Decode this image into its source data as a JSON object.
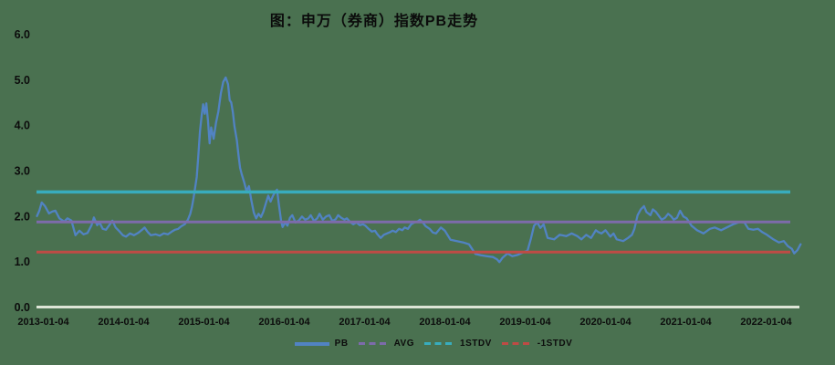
{
  "chart_data": {
    "type": "line",
    "title": "图：申万（券商）指数PB走势",
    "xlabel": "",
    "ylabel": "",
    "ylim": [
      0,
      6
    ],
    "grid": false,
    "legend_position": "bottom",
    "y_tick_labels": [
      "0.0",
      "1.0",
      "2.0",
      "3.0",
      "4.0",
      "5.0",
      "6.0"
    ],
    "x_tick_labels": [
      "2013-01-04",
      "2014-01-04",
      "2015-01-04",
      "2016-01-04",
      "2017-01-04",
      "2018-01-04",
      "2019-01-04",
      "2020-01-04",
      "2021-01-04",
      "2022-01-04"
    ],
    "reference_lines": [
      {
        "name": "1STDV",
        "value": 2.53,
        "color": "#38acbd"
      },
      {
        "name": "AVG",
        "value": 1.87,
        "color": "#7d6bab"
      },
      {
        "name": "-1STDV",
        "value": 1.21,
        "color": "#bf4b45"
      }
    ],
    "series": [
      {
        "name": "PB",
        "color": "#5183c3",
        "x_unit": "years_since_2013-01-04",
        "points": [
          [
            -0.08,
            2.0
          ],
          [
            -0.05,
            2.12
          ],
          [
            -0.02,
            2.3
          ],
          [
            0.02,
            2.22
          ],
          [
            0.07,
            2.06
          ],
          [
            0.11,
            2.1
          ],
          [
            0.15,
            2.12
          ],
          [
            0.2,
            1.95
          ],
          [
            0.26,
            1.88
          ],
          [
            0.3,
            1.95
          ],
          [
            0.35,
            1.9
          ],
          [
            0.4,
            1.58
          ],
          [
            0.45,
            1.68
          ],
          [
            0.5,
            1.6
          ],
          [
            0.55,
            1.63
          ],
          [
            0.6,
            1.8
          ],
          [
            0.63,
            1.97
          ],
          [
            0.67,
            1.8
          ],
          [
            0.7,
            1.86
          ],
          [
            0.74,
            1.72
          ],
          [
            0.78,
            1.7
          ],
          [
            0.82,
            1.8
          ],
          [
            0.86,
            1.9
          ],
          [
            0.9,
            1.75
          ],
          [
            0.94,
            1.68
          ],
          [
            0.99,
            1.58
          ],
          [
            1.03,
            1.55
          ],
          [
            1.08,
            1.62
          ],
          [
            1.13,
            1.58
          ],
          [
            1.18,
            1.63
          ],
          [
            1.23,
            1.7
          ],
          [
            1.26,
            1.75
          ],
          [
            1.3,
            1.65
          ],
          [
            1.34,
            1.58
          ],
          [
            1.4,
            1.6
          ],
          [
            1.45,
            1.57
          ],
          [
            1.5,
            1.62
          ],
          [
            1.55,
            1.6
          ],
          [
            1.6,
            1.66
          ],
          [
            1.64,
            1.7
          ],
          [
            1.68,
            1.72
          ],
          [
            1.72,
            1.78
          ],
          [
            1.76,
            1.82
          ],
          [
            1.8,
            1.92
          ],
          [
            1.83,
            2.05
          ],
          [
            1.85,
            2.2
          ],
          [
            1.87,
            2.4
          ],
          [
            1.89,
            2.62
          ],
          [
            1.91,
            2.86
          ],
          [
            1.93,
            3.32
          ],
          [
            1.95,
            3.86
          ],
          [
            1.97,
            4.2
          ],
          [
            1.99,
            4.46
          ],
          [
            2.01,
            4.25
          ],
          [
            2.03,
            4.48
          ],
          [
            2.05,
            4.1
          ],
          [
            2.07,
            3.6
          ],
          [
            2.09,
            3.95
          ],
          [
            2.12,
            3.7
          ],
          [
            2.15,
            4.05
          ],
          [
            2.18,
            4.3
          ],
          [
            2.21,
            4.7
          ],
          [
            2.24,
            4.95
          ],
          [
            2.27,
            5.05
          ],
          [
            2.3,
            4.9
          ],
          [
            2.32,
            4.55
          ],
          [
            2.34,
            4.5
          ],
          [
            2.36,
            4.28
          ],
          [
            2.38,
            3.98
          ],
          [
            2.41,
            3.66
          ],
          [
            2.43,
            3.35
          ],
          [
            2.45,
            3.06
          ],
          [
            2.47,
            2.92
          ],
          [
            2.5,
            2.75
          ],
          [
            2.53,
            2.55
          ],
          [
            2.56,
            2.66
          ],
          [
            2.59,
            2.35
          ],
          [
            2.62,
            2.08
          ],
          [
            2.65,
            1.95
          ],
          [
            2.68,
            2.05
          ],
          [
            2.71,
            1.98
          ],
          [
            2.74,
            2.1
          ],
          [
            2.77,
            2.28
          ],
          [
            2.8,
            2.45
          ],
          [
            2.83,
            2.32
          ],
          [
            2.86,
            2.45
          ],
          [
            2.89,
            2.54
          ],
          [
            2.91,
            2.58
          ],
          [
            2.93,
            2.3
          ],
          [
            2.96,
            1.9
          ],
          [
            2.98,
            1.76
          ],
          [
            3.01,
            1.86
          ],
          [
            3.04,
            1.79
          ],
          [
            3.07,
            1.96
          ],
          [
            3.1,
            2.02
          ],
          [
            3.14,
            1.86
          ],
          [
            3.18,
            1.9
          ],
          [
            3.22,
            1.99
          ],
          [
            3.26,
            1.92
          ],
          [
            3.3,
            1.95
          ],
          [
            3.33,
            2.02
          ],
          [
            3.37,
            1.89
          ],
          [
            3.41,
            1.95
          ],
          [
            3.44,
            2.05
          ],
          [
            3.48,
            1.92
          ],
          [
            3.52,
            1.99
          ],
          [
            3.56,
            2.02
          ],
          [
            3.6,
            1.89
          ],
          [
            3.64,
            1.93
          ],
          [
            3.67,
            2.02
          ],
          [
            3.71,
            1.96
          ],
          [
            3.75,
            1.92
          ],
          [
            3.78,
            1.95
          ],
          [
            3.82,
            1.87
          ],
          [
            3.86,
            1.82
          ],
          [
            3.9,
            1.86
          ],
          [
            3.94,
            1.8
          ],
          [
            3.98,
            1.82
          ],
          [
            4.01,
            1.79
          ],
          [
            4.05,
            1.72
          ],
          [
            4.09,
            1.66
          ],
          [
            4.13,
            1.68
          ],
          [
            4.16,
            1.6
          ],
          [
            4.2,
            1.52
          ],
          [
            4.24,
            1.59
          ],
          [
            4.28,
            1.62
          ],
          [
            4.32,
            1.65
          ],
          [
            4.35,
            1.68
          ],
          [
            4.39,
            1.65
          ],
          [
            4.43,
            1.72
          ],
          [
            4.47,
            1.69
          ],
          [
            4.5,
            1.75
          ],
          [
            4.54,
            1.72
          ],
          [
            4.58,
            1.82
          ],
          [
            4.62,
            1.86
          ],
          [
            4.66,
            1.88
          ],
          [
            4.69,
            1.92
          ],
          [
            4.73,
            1.85
          ],
          [
            4.76,
            1.78
          ],
          [
            4.81,
            1.72
          ],
          [
            4.85,
            1.64
          ],
          [
            4.89,
            1.62
          ],
          [
            4.95,
            1.75
          ],
          [
            5.0,
            1.68
          ],
          [
            5.07,
            1.48
          ],
          [
            5.15,
            1.45
          ],
          [
            5.23,
            1.42
          ],
          [
            5.3,
            1.38
          ],
          [
            5.38,
            1.17
          ],
          [
            5.45,
            1.14
          ],
          [
            5.52,
            1.12
          ],
          [
            5.6,
            1.1
          ],
          [
            5.65,
            1.05
          ],
          [
            5.68,
            0.99
          ],
          [
            5.72,
            1.09
          ],
          [
            5.78,
            1.18
          ],
          [
            5.84,
            1.12
          ],
          [
            5.91,
            1.15
          ],
          [
            5.97,
            1.2
          ],
          [
            6.03,
            1.24
          ],
          [
            6.07,
            1.5
          ],
          [
            6.11,
            1.79
          ],
          [
            6.15,
            1.86
          ],
          [
            6.19,
            1.74
          ],
          [
            6.23,
            1.82
          ],
          [
            6.28,
            1.52
          ],
          [
            6.36,
            1.49
          ],
          [
            6.43,
            1.59
          ],
          [
            6.51,
            1.56
          ],
          [
            6.58,
            1.62
          ],
          [
            6.65,
            1.56
          ],
          [
            6.7,
            1.49
          ],
          [
            6.76,
            1.59
          ],
          [
            6.82,
            1.52
          ],
          [
            6.88,
            1.69
          ],
          [
            6.91,
            1.65
          ],
          [
            6.95,
            1.62
          ],
          [
            7.0,
            1.69
          ],
          [
            7.06,
            1.55
          ],
          [
            7.1,
            1.62
          ],
          [
            7.14,
            1.49
          ],
          [
            7.22,
            1.45
          ],
          [
            7.28,
            1.52
          ],
          [
            7.33,
            1.59
          ],
          [
            7.36,
            1.72
          ],
          [
            7.4,
            2.02
          ],
          [
            7.44,
            2.15
          ],
          [
            7.48,
            2.22
          ],
          [
            7.51,
            2.09
          ],
          [
            7.56,
            2.02
          ],
          [
            7.59,
            2.15
          ],
          [
            7.63,
            2.09
          ],
          [
            7.67,
            1.99
          ],
          [
            7.7,
            1.92
          ],
          [
            7.74,
            1.96
          ],
          [
            7.78,
            2.05
          ],
          [
            7.82,
            1.99
          ],
          [
            7.85,
            1.92
          ],
          [
            7.89,
            1.96
          ],
          [
            7.93,
            2.12
          ],
          [
            7.97,
            1.99
          ],
          [
            8.01,
            1.95
          ],
          [
            8.07,
            1.79
          ],
          [
            8.14,
            1.69
          ],
          [
            8.22,
            1.62
          ],
          [
            8.3,
            1.72
          ],
          [
            8.36,
            1.75
          ],
          [
            8.44,
            1.69
          ],
          [
            8.52,
            1.76
          ],
          [
            8.59,
            1.82
          ],
          [
            8.67,
            1.87
          ],
          [
            8.73,
            1.86
          ],
          [
            8.78,
            1.72
          ],
          [
            8.84,
            1.7
          ],
          [
            8.9,
            1.72
          ],
          [
            8.95,
            1.65
          ],
          [
            9.01,
            1.59
          ],
          [
            9.09,
            1.49
          ],
          [
            9.16,
            1.42
          ],
          [
            9.22,
            1.45
          ],
          [
            9.27,
            1.34
          ],
          [
            9.32,
            1.28
          ],
          [
            9.35,
            1.18
          ],
          [
            9.39,
            1.25
          ],
          [
            9.43,
            1.38
          ]
        ]
      }
    ],
    "legend": [
      {
        "label": "PB",
        "style": "solid",
        "color": "#5183c3"
      },
      {
        "label": "AVG",
        "style": "dashed",
        "color": "#7d6bab"
      },
      {
        "label": "1STDV",
        "style": "dashed",
        "color": "#38acbd"
      },
      {
        "label": "-1STDV",
        "style": "dashed",
        "color": "#bf4b45"
      }
    ]
  },
  "colors": {
    "background": "#4a7150",
    "baseline_axis": "#dde5d6",
    "text": "#0c0c0c"
  }
}
